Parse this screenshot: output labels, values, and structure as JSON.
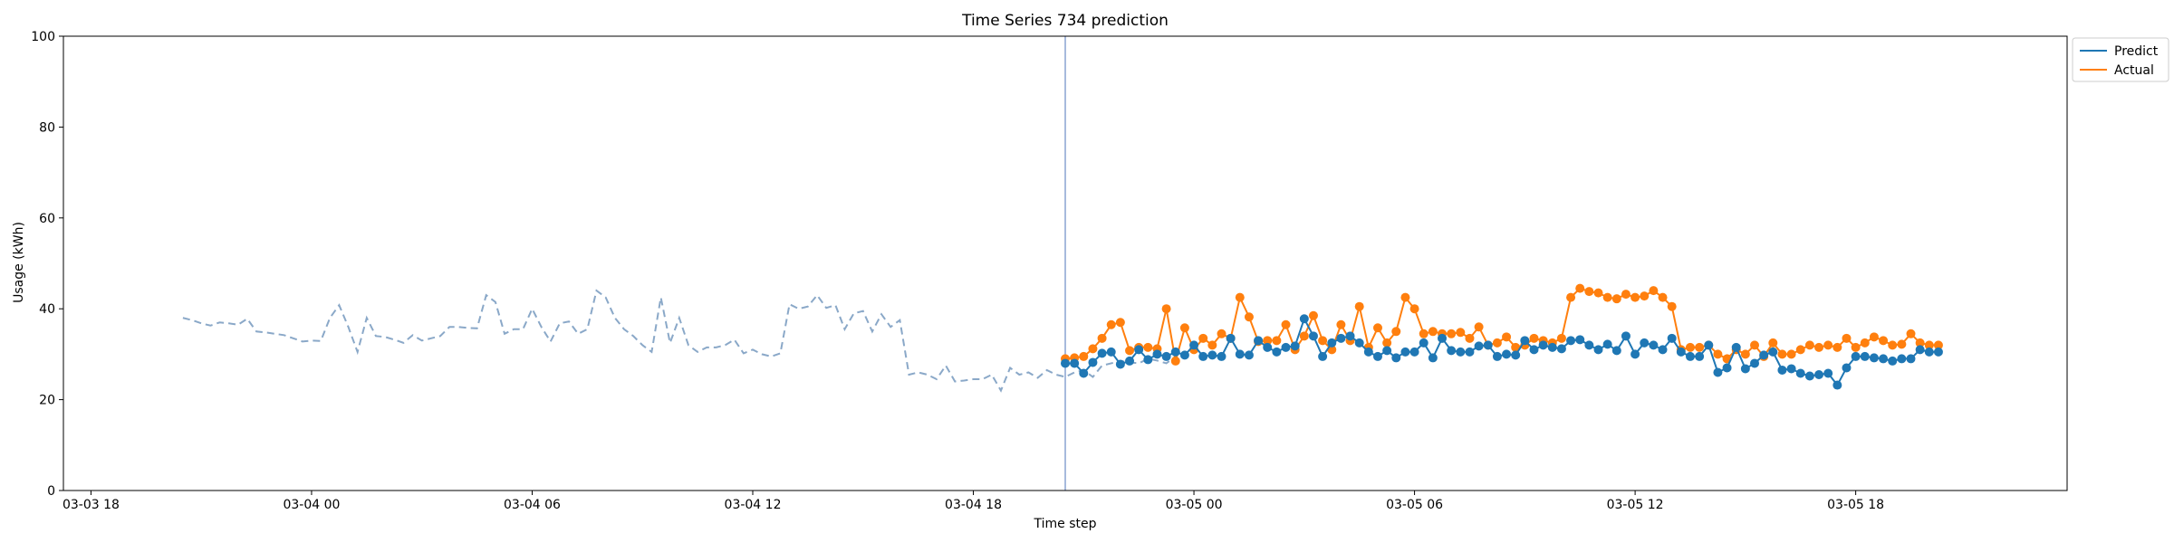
{
  "chart_data": {
    "type": "line",
    "title": "Time Series 734 prediction",
    "xlabel": "Time step",
    "ylabel": "Usage (kWh)",
    "ylim": [
      0,
      100
    ],
    "yticks": [
      0,
      20,
      40,
      60,
      80,
      100
    ],
    "xlim": [
      "2026-03-03 17:15",
      "2026-03-05 23:45"
    ],
    "xticks": [
      {
        "t": "2026-03-03 18:00",
        "label": "03-03 18"
      },
      {
        "t": "2026-03-04 00:00",
        "label": "03-04 00"
      },
      {
        "t": "2026-03-04 06:00",
        "label": "03-04 06"
      },
      {
        "t": "2026-03-04 12:00",
        "label": "03-04 12"
      },
      {
        "t": "2026-03-04 18:00",
        "label": "03-04 18"
      },
      {
        "t": "2026-03-05 00:00",
        "label": "03-05 00"
      },
      {
        "t": "2026-03-05 06:00",
        "label": "03-05 06"
      },
      {
        "t": "2026-03-05 12:00",
        "label": "03-05 12"
      },
      {
        "t": "2026-03-05 18:00",
        "label": "03-05 18"
      }
    ],
    "forecast_start": "2026-03-04 20:30",
    "interval_minutes": 15,
    "grid": false,
    "legend_position": "outside-top-right",
    "colors": {
      "predict": "#1f77b4",
      "actual": "#ff7f0e",
      "history": "#8aa8c8",
      "vline": "#8aa3d2"
    },
    "history": {
      "start": "2026-03-03 20:30",
      "values": [
        38.0,
        37.5,
        36.8,
        36.3,
        37.0,
        36.8,
        36.5,
        37.8,
        35.0,
        34.8,
        34.5,
        34.2,
        33.5,
        32.8,
        33.0,
        32.9,
        38.0,
        40.8,
        36.0,
        30.5,
        38.0,
        34.0,
        33.8,
        33.2,
        32.5,
        34.2,
        33.0,
        33.5,
        34.0,
        36.0,
        36.0,
        35.8,
        35.7,
        43.0,
        41.5,
        34.5,
        35.5,
        35.5,
        40.0,
        36.0,
        32.8,
        36.8,
        37.2,
        34.5,
        35.5,
        44.0,
        42.5,
        38.0,
        35.5,
        34.0,
        32.0,
        30.5,
        42.5,
        32.5,
        38.0,
        32.0,
        30.5,
        31.5,
        31.5,
        32.0,
        33.2,
        30.2,
        31.0,
        30.0,
        29.5,
        30.2,
        41.0,
        40.0,
        40.5,
        43.0,
        40.2,
        40.8,
        35.5,
        39.0,
        39.5,
        35.0,
        38.8,
        36.0,
        37.5,
        25.5,
        26.0,
        25.5,
        24.5,
        27.5,
        24.0,
        24.2,
        24.5,
        24.5,
        25.5,
        22.0,
        27.0,
        25.5,
        26.0,
        24.8,
        26.5,
        25.5,
        25.0,
        26.0,
        26.5,
        25.0,
        27.5,
        28.0,
        28.5,
        28.2,
        28.0,
        29.0,
        28.6,
        28.0,
        29.5
      ]
    },
    "series": [
      {
        "name": "Predict",
        "start": "2026-03-04 20:30",
        "values": [
          28.0,
          28.0,
          25.8,
          28.2,
          30.2,
          30.5,
          27.8,
          28.5,
          31.0,
          28.8,
          30.0,
          29.5,
          30.5,
          29.8,
          32.0,
          29.5,
          29.8,
          29.5,
          33.5,
          30.0,
          29.8,
          33.0,
          31.5,
          30.5,
          31.5,
          31.8,
          37.8,
          34.0,
          29.5,
          32.5,
          33.5,
          34.0,
          32.5,
          30.5,
          29.5,
          30.8,
          29.2,
          30.5,
          30.5,
          32.5,
          29.2,
          33.5,
          30.8,
          30.5,
          30.5,
          31.8,
          32.0,
          29.5,
          30.0,
          29.8,
          33.0,
          31.0,
          32.0,
          31.5,
          31.2,
          33.0,
          33.2,
          32.0,
          31.0,
          32.2,
          30.8,
          34.0,
          30.0,
          32.5,
          32.0,
          31.0,
          33.5,
          30.5,
          29.5,
          29.5,
          32.0,
          26.0,
          27.0,
          31.5,
          26.8,
          28.0,
          29.8,
          30.5,
          26.5,
          26.8,
          25.8,
          25.2,
          25.5,
          25.8,
          23.2,
          27.0,
          29.5,
          29.5,
          29.2,
          29.0,
          28.5,
          29.0,
          29.0,
          31.0,
          30.5,
          30.5
        ]
      },
      {
        "name": "Actual",
        "start": "2026-03-04 20:30",
        "values": [
          29.0,
          29.2,
          29.5,
          31.2,
          33.5,
          36.5,
          37.0,
          30.8,
          31.5,
          31.5,
          31.2,
          40.0,
          28.5,
          35.8,
          31.0,
          33.5,
          32.0,
          34.5,
          33.5,
          42.5,
          38.2,
          32.8,
          33.0,
          33.0,
          36.5,
          31.0,
          34.0,
          38.5,
          33.0,
          31.0,
          36.5,
          33.0,
          40.5,
          31.5,
          35.8,
          32.5,
          35.0,
          42.5,
          40.0,
          34.5,
          35.0,
          34.5,
          34.5,
          34.8,
          33.5,
          36.0,
          32.0,
          32.5,
          33.8,
          31.5,
          32.0,
          33.5,
          33.0,
          32.5,
          33.5,
          42.5,
          44.5,
          43.8,
          43.5,
          42.5,
          42.2,
          43.2,
          42.5,
          42.8,
          44.0,
          42.5,
          40.5,
          31.0,
          31.5,
          31.5,
          32.0,
          30.0,
          29.0,
          31.0,
          30.0,
          32.0,
          29.5,
          32.5,
          30.0,
          30.0,
          31.0,
          32.0,
          31.5,
          32.0,
          31.5,
          33.5,
          31.5,
          32.5,
          33.8,
          33.0,
          32.0,
          32.2,
          34.5,
          32.5,
          32.0,
          32.0
        ]
      }
    ]
  }
}
